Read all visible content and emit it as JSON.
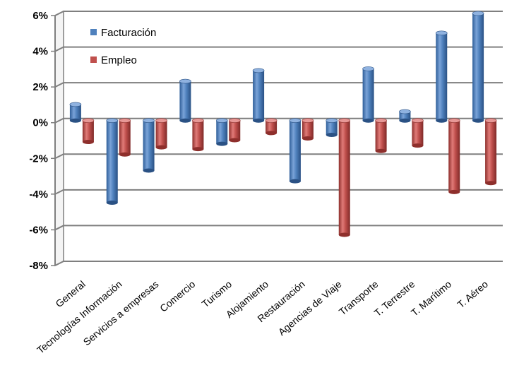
{
  "chart_data": {
    "type": "bar",
    "categories": [
      "General",
      "Tecnologías Información",
      "Servicios a empresas",
      "Comercio",
      "Turismo",
      "Alojamiento",
      "Restauración",
      "Agencias de Viaje",
      "Transporte",
      "T. Terrestre",
      "T. Marítimo",
      "T. Aéreo"
    ],
    "series": [
      {
        "name": "Facturación",
        "color": "#4F81BD",
        "values": [
          0.9,
          -4.6,
          -2.8,
          2.2,
          -1.3,
          2.8,
          -3.4,
          -0.8,
          2.9,
          0.5,
          4.9,
          6.0
        ]
      },
      {
        "name": "Empleo",
        "color": "#C0504D",
        "values": [
          -1.2,
          -1.9,
          -1.5,
          -1.6,
          -1.1,
          -0.7,
          -1.0,
          -6.4,
          -1.7,
          -1.4,
          -4.0,
          -3.5
        ]
      }
    ],
    "y_ticks": [
      "6%",
      "4%",
      "2%",
      "0%",
      "-2%",
      "-4%",
      "-6%",
      "-8%"
    ],
    "ylim": [
      -8,
      6
    ],
    "y_unit": "%",
    "grid": true,
    "legend_position": "top-left"
  }
}
